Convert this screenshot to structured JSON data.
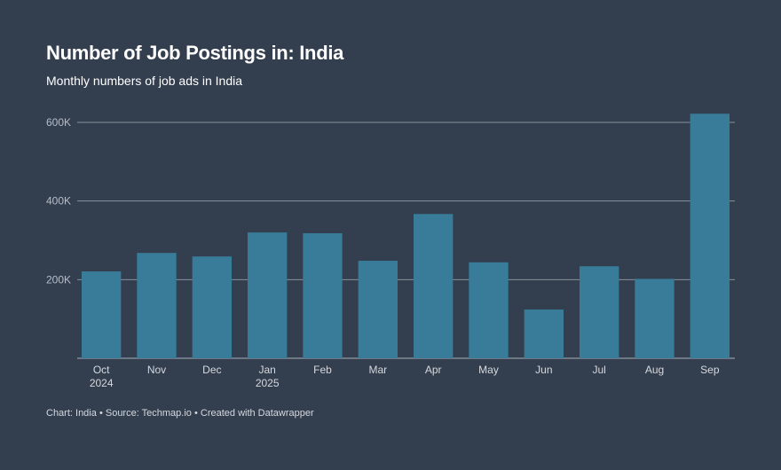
{
  "header": {
    "title": "Number of Job Postings in: India",
    "subtitle": "Monthly numbers of job ads in India"
  },
  "footer": {
    "chart_label": "Chart: India",
    "separator": "•",
    "source": "Source: Techmap.io",
    "credit": "Created with Datawrapper"
  },
  "colors": {
    "bar": "#387c99",
    "grid": "#8a9099",
    "background": "#333e4f"
  },
  "chart_data": {
    "type": "bar",
    "title": "Number of Job Postings in: India",
    "subtitle": "Monthly numbers of job ads in India",
    "xlabel": "",
    "ylabel": "",
    "ylim": [
      0,
      600000
    ],
    "yticks": [
      200000,
      400000,
      600000
    ],
    "ytick_labels": [
      "200K",
      "400K",
      "600K"
    ],
    "grid": true,
    "categories": [
      "Oct 2024",
      "Nov",
      "Dec",
      "Jan 2025",
      "Feb",
      "Mar",
      "Apr",
      "May",
      "Jun",
      "Jul",
      "Aug",
      "Sep"
    ],
    "category_lines": [
      [
        "Oct",
        "2024"
      ],
      [
        "Nov"
      ],
      [
        "Dec"
      ],
      [
        "Jan",
        "2025"
      ],
      [
        "Feb"
      ],
      [
        "Mar"
      ],
      [
        "Apr"
      ],
      [
        "May"
      ],
      [
        "Jun"
      ],
      [
        "Jul"
      ],
      [
        "Aug"
      ],
      [
        "Sep"
      ]
    ],
    "values": [
      221000,
      268000,
      259000,
      320000,
      318000,
      248000,
      367000,
      244000,
      124000,
      234000,
      202000,
      622000
    ]
  }
}
